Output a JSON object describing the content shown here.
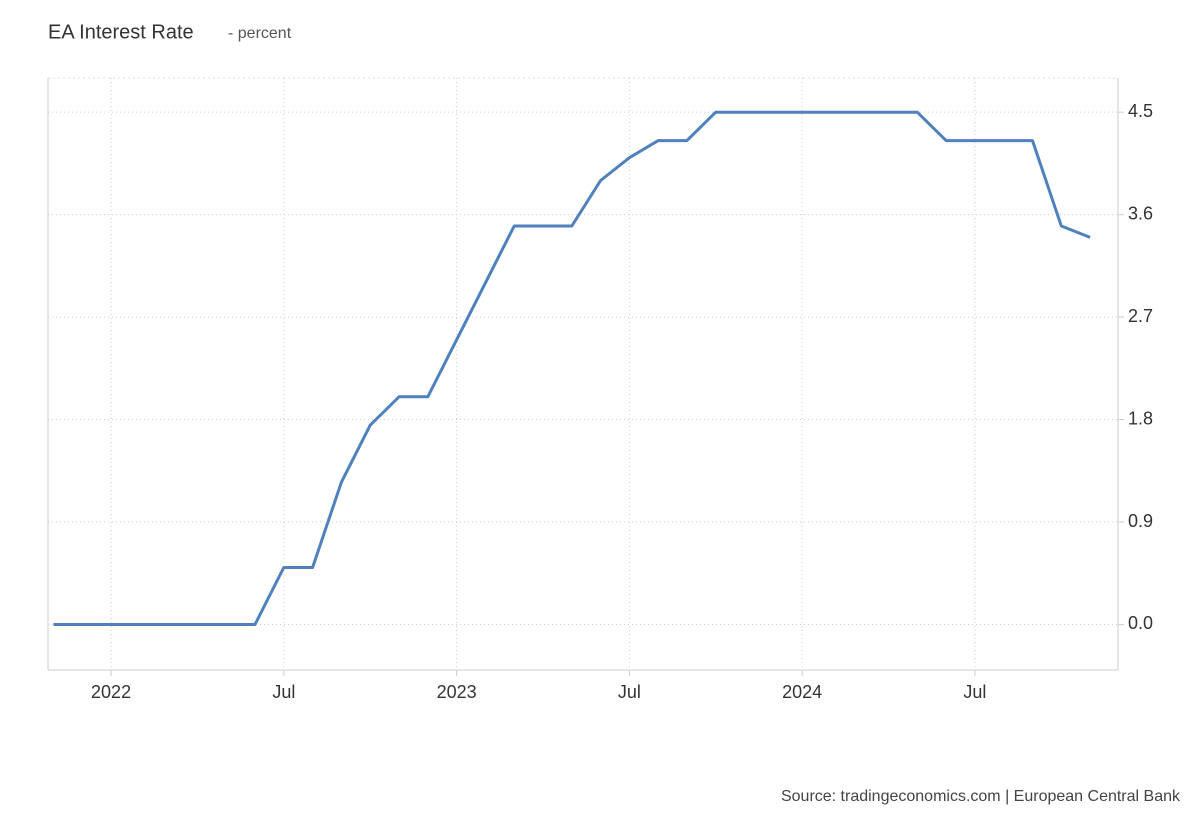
{
  "chart_data": {
    "type": "line",
    "title": "EA Interest Rate",
    "subtitle": "- percent",
    "source": "Source: tradingeconomics.com | European Central Bank",
    "categories": [
      null,
      null,
      "2022",
      null,
      null,
      null,
      null,
      null,
      "Jul",
      null,
      null,
      null,
      null,
      null,
      "2023",
      null,
      null,
      null,
      null,
      null,
      "Jul",
      null,
      null,
      null,
      null,
      null,
      "2024",
      null,
      null,
      null,
      null,
      null,
      "Jul",
      null,
      null,
      null,
      null
    ],
    "series": [
      {
        "name": "EA Interest Rate",
        "color": "#4f81bd",
        "values": [
          0,
          0,
          0,
          0,
          0,
          0,
          0,
          0,
          0.5,
          0.5,
          1.25,
          1.75,
          2.0,
          2.0,
          2.5,
          3.0,
          3.5,
          3.5,
          3.5,
          3.9,
          4.1,
          4.25,
          4.25,
          4.5,
          4.5,
          4.5,
          4.5,
          4.5,
          4.5,
          4.5,
          4.5,
          4.25,
          4.25,
          4.25,
          4.25,
          3.5,
          3.4
        ]
      }
    ],
    "ylim": [
      -0.4,
      4.8
    ],
    "yticks": [
      {
        "value": 0,
        "label": "0.0"
      },
      0.9,
      1.8,
      2.7,
      3.6,
      4.5
    ],
    "grid": true
  }
}
